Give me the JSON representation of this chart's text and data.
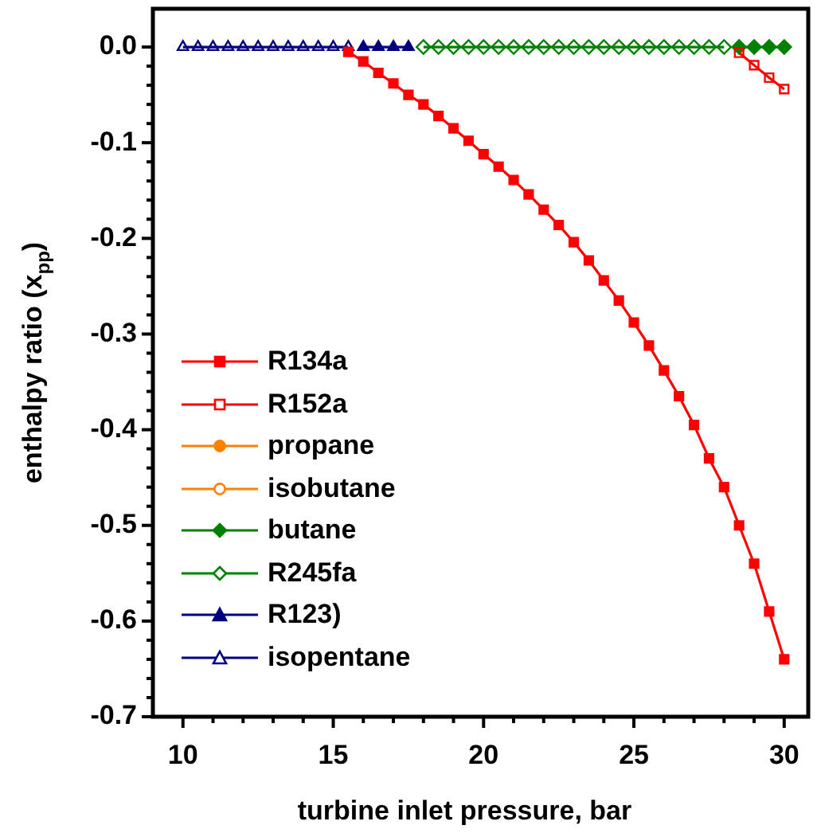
{
  "chart_data": {
    "type": "line",
    "xlabel": "turbine inlet pressure, bar",
    "ylabel": "enthalpy ratio (x$_{pp}$)",
    "xlim": [
      9,
      30.8
    ],
    "ylim": [
      -0.7,
      0.04
    ],
    "xticks": [
      10,
      {
        "value": 11,
        "label": null
      },
      {
        "value": 12,
        "label": null
      },
      {
        "value": 13,
        "label": null
      },
      {
        "value": 14,
        "label": null
      },
      15,
      {
        "value": 16,
        "label": null
      },
      {
        "value": 17,
        "label": null
      },
      {
        "value": 18,
        "label": null
      },
      {
        "value": 19,
        "label": null
      },
      20,
      {
        "value": 21,
        "label": null
      },
      {
        "value": 22,
        "label": null
      },
      {
        "value": 23,
        "label": null
      },
      {
        "value": 24,
        "label": null
      },
      25,
      {
        "value": 26,
        "label": null
      },
      {
        "value": 27,
        "label": null
      },
      {
        "value": 28,
        "label": null
      },
      {
        "value": 29,
        "label": null
      },
      30
    ],
    "yticks": [
      {
        "value": 0,
        "label": "0.0"
      },
      {
        "value": -0.02,
        "label": null
      },
      {
        "value": -0.04,
        "label": null
      },
      {
        "value": -0.06,
        "label": null
      },
      {
        "value": -0.08,
        "label": null
      },
      -0.1,
      {
        "value": -0.12,
        "label": null
      },
      {
        "value": -0.14,
        "label": null
      },
      {
        "value": -0.16,
        "label": null
      },
      {
        "value": -0.18,
        "label": null
      },
      -0.2,
      {
        "value": -0.22,
        "label": null
      },
      {
        "value": -0.24,
        "label": null
      },
      {
        "value": -0.26,
        "label": null
      },
      {
        "value": -0.28,
        "label": null
      },
      -0.3,
      {
        "value": -0.32,
        "label": null
      },
      {
        "value": -0.34,
        "label": null
      },
      {
        "value": -0.36,
        "label": null
      },
      {
        "value": -0.38,
        "label": null
      },
      -0.4,
      {
        "value": -0.42,
        "label": null
      },
      {
        "value": -0.44,
        "label": null
      },
      {
        "value": -0.46,
        "label": null
      },
      {
        "value": -0.48,
        "label": null
      },
      -0.5,
      {
        "value": -0.52,
        "label": null
      },
      {
        "value": -0.54,
        "label": null
      },
      {
        "value": -0.56,
        "label": null
      },
      {
        "value": -0.58,
        "label": null
      },
      -0.6,
      {
        "value": -0.62,
        "label": null
      },
      {
        "value": -0.64,
        "label": null
      },
      {
        "value": -0.66,
        "label": null
      },
      {
        "value": -0.68,
        "label": null
      },
      -0.7
    ],
    "grid": false,
    "legend": "bottom left",
    "line_style": "solid",
    "series": [
      {
        "name": "R134a",
        "color": "#ff0000",
        "marker": "square",
        "x": [
          15.5,
          16,
          16.5,
          17,
          17.5,
          18,
          18.5,
          19,
          19.5,
          20,
          20.5,
          21,
          21.5,
          22,
          22.5,
          23,
          23.5,
          24,
          24.5,
          25,
          25.5,
          26,
          26.5,
          27,
          27.5,
          28,
          28.5,
          29,
          29.5,
          30
        ],
        "values": [
          -0.005,
          -0.015,
          -0.027,
          -0.038,
          -0.05,
          -0.06,
          -0.072,
          -0.085,
          -0.098,
          -0.112,
          -0.125,
          -0.139,
          -0.154,
          -0.17,
          -0.186,
          -0.204,
          -0.223,
          -0.244,
          -0.265,
          -0.288,
          -0.312,
          -0.338,
          -0.365,
          -0.395,
          -0.43,
          -0.46,
          -0.5,
          -0.54,
          -0.59,
          -0.64
        ]
      },
      {
        "name": "R152a",
        "color": "#ff0000",
        "marker": "square-open",
        "x": [
          28.5,
          29,
          29.5,
          30
        ],
        "values": [
          -0.006,
          -0.019,
          -0.032,
          -0.044
        ]
      },
      {
        "name": "propane",
        "color": "#ff8000",
        "marker": "circle"
      },
      {
        "name": "isobutane",
        "color": "#ff8000",
        "marker": "circle-open"
      },
      {
        "name": "butane",
        "color": "#008000",
        "marker": "diamond",
        "x": [
          28.5,
          29,
          29.5,
          30
        ],
        "values": [
          0,
          0,
          0,
          0
        ]
      },
      {
        "name": "R245fa",
        "color": "#008000",
        "marker": "diamond-open",
        "x": [
          18,
          18.5,
          19,
          19.5,
          20,
          20.5,
          21,
          21.5,
          22,
          22.5,
          23,
          23.5,
          24,
          24.5,
          25,
          25.5,
          26,
          26.5,
          27,
          27.5,
          28
        ],
        "values": [
          0,
          0,
          0,
          0,
          0,
          0,
          0,
          0,
          0,
          0,
          0,
          0,
          0,
          0,
          0,
          0,
          0,
          0,
          0,
          0,
          0
        ]
      },
      {
        "name": "R123)",
        "color": "#000080",
        "marker": "triangle",
        "x": [
          16,
          16.5,
          17,
          17.5
        ],
        "values": [
          0,
          0,
          0,
          0
        ]
      },
      {
        "name": "isopentane",
        "color": "#000080",
        "marker": "triangle-open",
        "x": [
          10,
          10.5,
          11,
          11.5,
          12,
          12.5,
          13,
          13.5,
          14,
          14.5,
          15,
          15.5
        ],
        "values": [
          0,
          0,
          0,
          0,
          0,
          0,
          0,
          0,
          0,
          0,
          0,
          0
        ]
      }
    ]
  }
}
